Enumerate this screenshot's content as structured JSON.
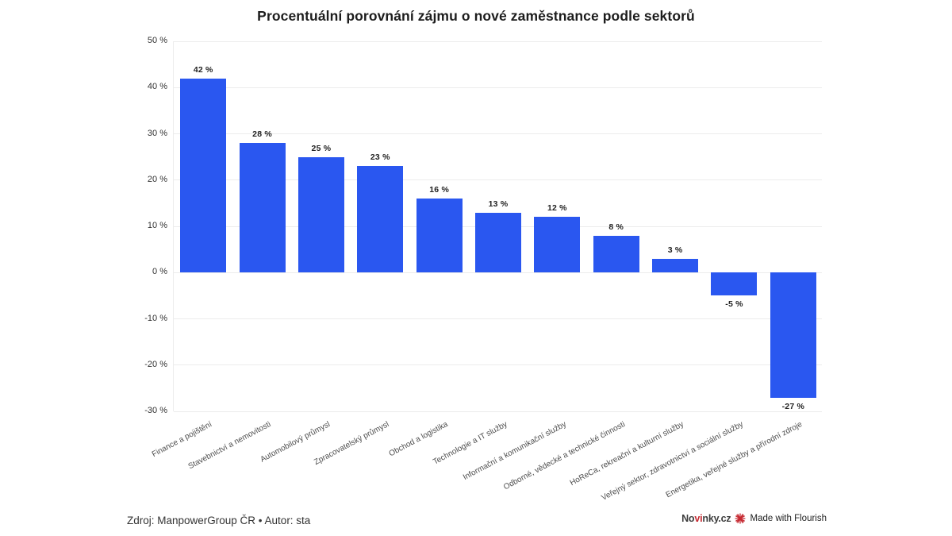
{
  "title": "Procentuální porovnání zájmu o nové zaměstnance podle sektorů",
  "chart_data": {
    "type": "bar",
    "title": "Procentuální porovnání zájmu o nové zaměstnance podle sektorů",
    "categories": [
      "Finance a pojištění",
      "Stavebnictví a nemovitosti",
      "Automobilový průmysl",
      "Zpracovatelský průmysl",
      "Obchod a logistika",
      "Technologie a IT služby",
      "Informační a komunikační služby",
      "Odborné, vědecké a technické činnosti",
      "HoReCa, rekreační a kulturní služby",
      "Veřejný sektor, zdravotnictví a sociální služby",
      "Energetika, veřejné služby a přírodní zdroje"
    ],
    "values": [
      42,
      28,
      25,
      23,
      16,
      13,
      12,
      8,
      3,
      -5,
      -27
    ],
    "value_labels": [
      "42 %",
      "28 %",
      "25 %",
      "23 %",
      "16 %",
      "13 %",
      "12 %",
      "8 %",
      "3 %",
      "-5 %",
      "-27 %"
    ],
    "xlabel": "",
    "ylabel": "",
    "ylim": [
      -30,
      50
    ],
    "yticks": [
      50,
      40,
      30,
      20,
      10,
      0,
      -10,
      -20,
      -30
    ],
    "ytick_labels": [
      "50 %",
      "40 %",
      "30 %",
      "20 %",
      "10 %",
      "0 %",
      "-10 %",
      "-20 %",
      "-30 %"
    ],
    "grid": true,
    "legend": "none",
    "bar_color": "#2a57f0"
  },
  "footer": {
    "source": "Zdroj: ManpowerGroup ČR • Autor: sta",
    "logo_prefix": "No",
    "logo_accent": "vi",
    "logo_suffix": "nky.cz",
    "made_with": "Made with Flourish",
    "accent_red": "#c62a32"
  }
}
